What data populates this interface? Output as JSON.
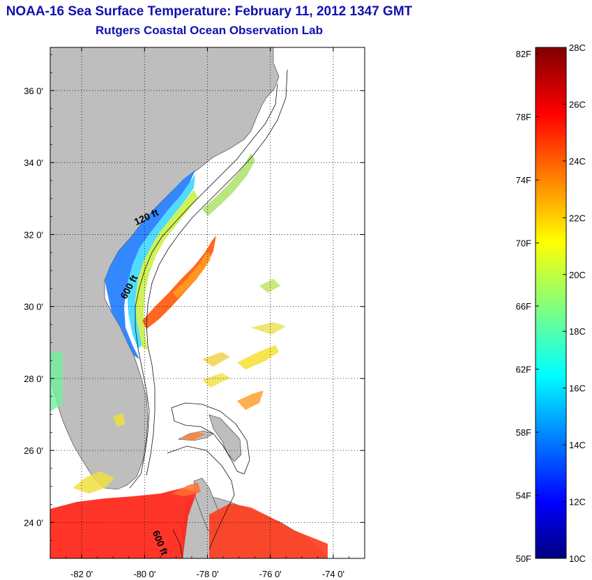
{
  "title": "NOAA-16 Sea Surface Temperature:  February 11, 2012 1347 GMT",
  "subtitle": "Rutgers Coastal Ocean Observation Lab",
  "map": {
    "lon_range": [
      -83,
      -73
    ],
    "lat_range": [
      23,
      37.2
    ],
    "x_ticks": [
      {
        "lon": -82,
        "label": "-82 0'"
      },
      {
        "lon": -80,
        "label": "-80 0'"
      },
      {
        "lon": -78,
        "label": "-78 0'"
      },
      {
        "lon": -76,
        "label": "-76 0'"
      },
      {
        "lon": -74,
        "label": "-74 0'"
      }
    ],
    "y_ticks": [
      {
        "lat": 24,
        "label": "24 0'"
      },
      {
        "lat": 26,
        "label": "26 0'"
      },
      {
        "lat": 28,
        "label": "28 0'"
      },
      {
        "lat": 30,
        "label": "30 0'"
      },
      {
        "lat": 32,
        "label": "32 0'"
      },
      {
        "lat": 34,
        "label": "34 0'"
      },
      {
        "lat": 36,
        "label": "36 0'"
      }
    ],
    "grid": "dotted",
    "land_color": "#bebebe",
    "isobath_labels": [
      {
        "text": "120 ft",
        "lon": -79.9,
        "lat": 32.4,
        "angle": -25
      },
      {
        "text": "600 ft",
        "lon": -80.4,
        "lat": 30.5,
        "angle": -62
      },
      {
        "text": "600 ft",
        "lon": -79.6,
        "lat": 23.4,
        "angle": 68
      }
    ]
  },
  "colorbar": {
    "range_c": [
      10,
      28
    ],
    "fahrenheit_labels": [
      "82F",
      "78F",
      "74F",
      "70F",
      "66F",
      "62F",
      "58F",
      "54F",
      "50F"
    ],
    "celsius_labels": [
      "28C",
      "26C",
      "24C",
      "22C",
      "20C",
      "18C",
      "16C",
      "14C",
      "12C",
      "10C"
    ],
    "colormap": "jet"
  }
}
